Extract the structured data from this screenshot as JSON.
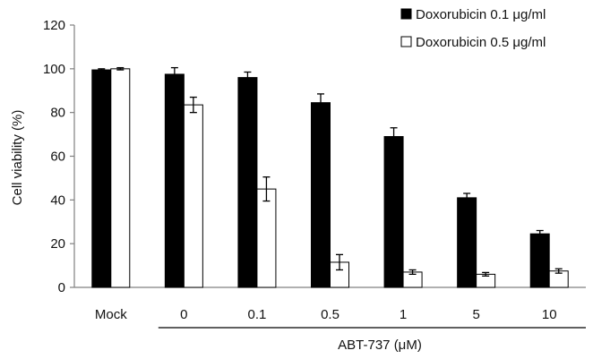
{
  "chart_data": {
    "type": "bar",
    "title": "",
    "ylabel": "Cell viability (%)",
    "xlabel": "ABT-737 (μM)",
    "ylim": [
      0,
      120
    ],
    "yticks": [
      0,
      20,
      40,
      60,
      80,
      100,
      120
    ],
    "categories": [
      "Mock",
      "0",
      "0.1",
      "0.5",
      "1",
      "5",
      "10"
    ],
    "grid": false,
    "legend_position": "top-right",
    "series": [
      {
        "name": "Doxorubicin 0.1 μg/ml",
        "color": "#000000",
        "values": [
          99.5,
          97.5,
          96,
          84.5,
          69,
          41,
          24.5
        ],
        "errors": [
          0.5,
          3,
          2.5,
          4,
          4,
          2,
          1.5
        ]
      },
      {
        "name": "Doxorubicin 0.5 μg/ml",
        "color": "#ffffff",
        "values": [
          100,
          83.5,
          45,
          11.5,
          7,
          6,
          7.5
        ],
        "errors": [
          0.5,
          3.5,
          5.5,
          3.5,
          1,
          0.8,
          1
        ]
      }
    ]
  }
}
